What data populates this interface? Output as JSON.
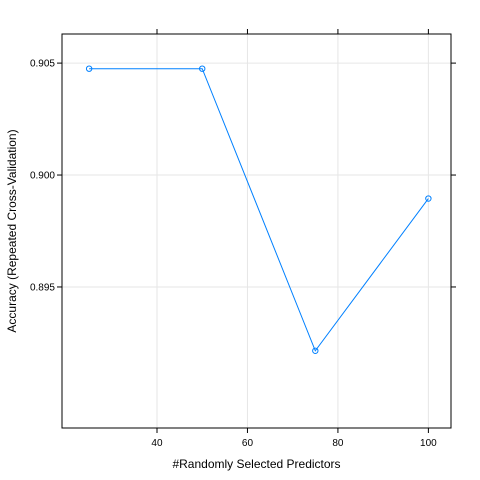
{
  "chart_data": {
    "type": "line",
    "title": "",
    "xlabel": "#Randomly Selected Predictors",
    "ylabel": "Accuracy (Repeated Cross-Validation)",
    "xlim": [
      19,
      105
    ],
    "ylim": [
      0.8887,
      0.9063
    ],
    "x_ticks": [
      40,
      60,
      80,
      100
    ],
    "x_tick_labels": [
      "40",
      "60",
      "80",
      "100"
    ],
    "y_ticks": [
      0.895,
      0.9,
      0.905
    ],
    "y_tick_labels": [
      "0.895",
      "0.900",
      "0.905"
    ],
    "grid": true,
    "series": [
      {
        "x": [
          25,
          50,
          75,
          100
        ],
        "y": [
          0.90475,
          0.90475,
          0.89215,
          0.89895
        ],
        "color": "#0080ff",
        "marker": "open-circle"
      }
    ]
  }
}
